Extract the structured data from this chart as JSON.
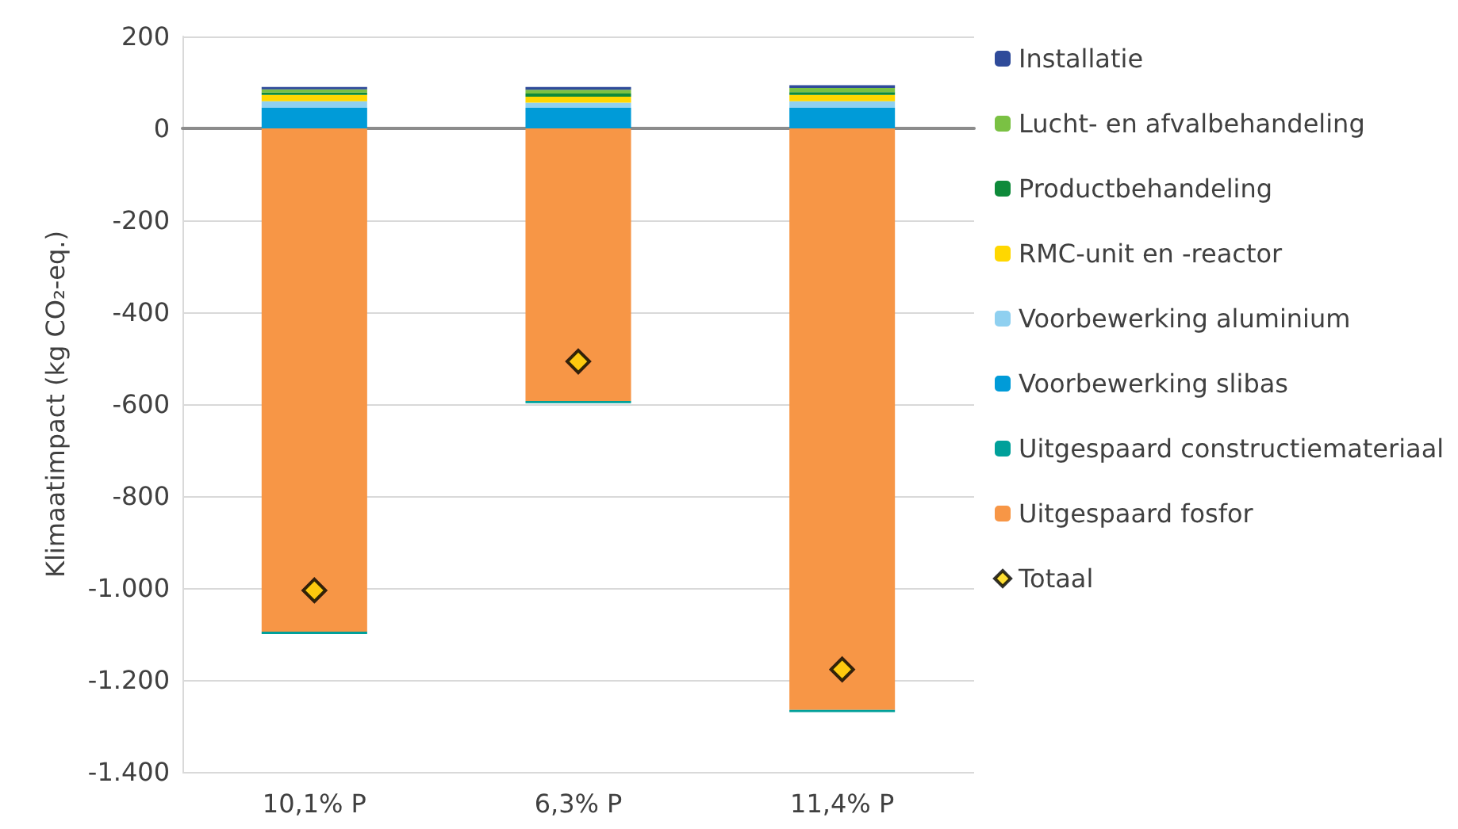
{
  "chart_data": {
    "type": "bar",
    "stacked": true,
    "ylabel": "Klimaatimpact (kg CO₂-eq.)",
    "categories": [
      "10,1% P",
      "6,3% P",
      "11,4% P"
    ],
    "series": [
      {
        "name": "Uitgespaard fosfor",
        "color": "#f79646",
        "values": [
          -1095,
          -593,
          -1265
        ]
      },
      {
        "name": "Uitgespaard constructiemateriaal",
        "color": "#00a09a",
        "values": [
          -5,
          -5,
          -5
        ]
      },
      {
        "name": "Voorbewerking slibas",
        "color": "#009bd8",
        "values": [
          45,
          45,
          45
        ]
      },
      {
        "name": "Voorbewerking aluminium",
        "color": "#8fd0f0",
        "values": [
          14,
          11,
          14
        ]
      },
      {
        "name": "RMC-unit en -reactor",
        "color": "#ffd700",
        "values": [
          14,
          13,
          14
        ]
      },
      {
        "name": "Productbehandeling",
        "color": "#0e8a3a",
        "values": [
          5,
          7,
          6
        ]
      },
      {
        "name": "Lucht- en afvalbehandeling",
        "color": "#7ac143",
        "values": [
          7,
          8,
          9
        ]
      },
      {
        "name": "Installatie",
        "color": "#2f4b9a",
        "values": [
          5,
          6,
          6
        ]
      },
      {
        "name": "Totaal",
        "type": "scatter",
        "marker": "diamond",
        "color": "#ffd700",
        "x": [
          "10,1% P",
          "6,3% P",
          "11,4% P"
        ],
        "values": [
          -1005,
          -507,
          -1177
        ]
      }
    ],
    "ylim": [
      -1400,
      200
    ],
    "yticks": [
      {
        "value": -1400,
        "label": "-1.400"
      },
      {
        "value": -1200,
        "label": "-1.200"
      },
      {
        "value": -1000,
        "label": "-1.000"
      },
      -800,
      -600,
      -400,
      -200,
      0,
      200
    ],
    "grid": "y",
    "legend": "right"
  }
}
